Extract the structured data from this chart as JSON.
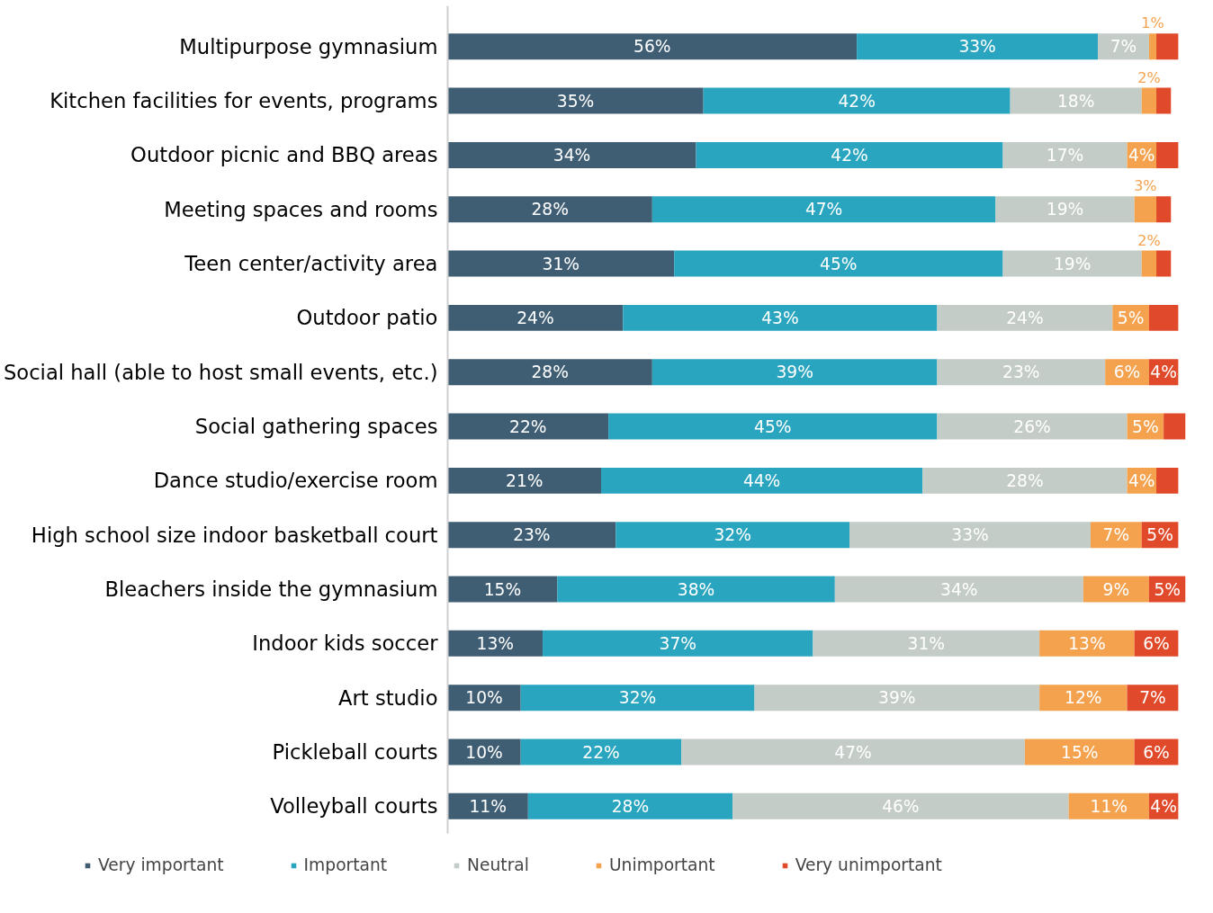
{
  "chart_data": {
    "type": "bar",
    "orientation": "horizontal",
    "stacked": true,
    "legend": "bottom",
    "grid": false,
    "categories": [
      "Multipurpose gymnasium",
      "Kitchen facilities for events, programs",
      "Outdoor picnic and BBQ areas",
      "Meeting spaces and rooms",
      "Teen center/activity area",
      "Outdoor patio",
      "Social hall (able to host small events, etc.)",
      "Social gathering spaces",
      "Dance studio/exercise room",
      "High school size indoor basketball court",
      "Bleachers inside the gymnasium",
      "Indoor kids soccer",
      "Art studio",
      "Pickleball courts",
      "Volleyball courts"
    ],
    "series": [
      {
        "name": "Very important",
        "color": "#3f5e74",
        "values": [
          56,
          35,
          34,
          28,
          31,
          24,
          28,
          22,
          21,
          23,
          15,
          13,
          10,
          10,
          11
        ],
        "value_labels": [
          "56%",
          "35%",
          "34%",
          "28%",
          "31%",
          "24%",
          "28%",
          "22%",
          "21%",
          "23%",
          "15%",
          "13%",
          "10%",
          "10%",
          "11%"
        ]
      },
      {
        "name": "Important",
        "color": "#2aa5bf",
        "values": [
          33,
          42,
          42,
          47,
          45,
          43,
          39,
          45,
          44,
          32,
          38,
          37,
          32,
          22,
          28
        ],
        "value_labels": [
          "33%",
          "42%",
          "42%",
          "47%",
          "45%",
          "43%",
          "39%",
          "45%",
          "44%",
          "32%",
          "38%",
          "37%",
          "32%",
          "22%",
          "28%"
        ]
      },
      {
        "name": "Neutral",
        "color": "#c3ccc6",
        "values": [
          7,
          18,
          17,
          19,
          19,
          24,
          23,
          26,
          28,
          33,
          34,
          31,
          39,
          47,
          46
        ],
        "value_labels": [
          "7%",
          "18%",
          "17%",
          "19%",
          "19%",
          "24%",
          "23%",
          "26%",
          "28%",
          "33%",
          "34%",
          "31%",
          "39%",
          "47%",
          "46%"
        ]
      },
      {
        "name": "Unimportant",
        "color": "#f4a24e",
        "values": [
          1,
          2,
          4,
          3,
          2,
          5,
          6,
          5,
          4,
          7,
          9,
          13,
          12,
          15,
          11
        ],
        "value_labels": [
          "1%",
          "2%",
          "4%",
          "3%",
          "2%",
          "5%",
          "6%",
          "5%",
          "4%",
          "7%",
          "9%",
          "13%",
          "12%",
          "15%",
          "11%"
        ]
      },
      {
        "name": "Very unimportant",
        "color": "#e04a2a",
        "values": [
          3,
          2,
          3,
          2,
          2,
          4,
          4,
          3,
          3,
          5,
          5,
          6,
          7,
          6,
          4
        ],
        "value_labels": [
          null,
          null,
          null,
          null,
          null,
          null,
          "4%",
          null,
          null,
          "5%",
          "5%",
          "6%",
          "7%",
          "6%",
          "4%"
        ]
      }
    ]
  }
}
